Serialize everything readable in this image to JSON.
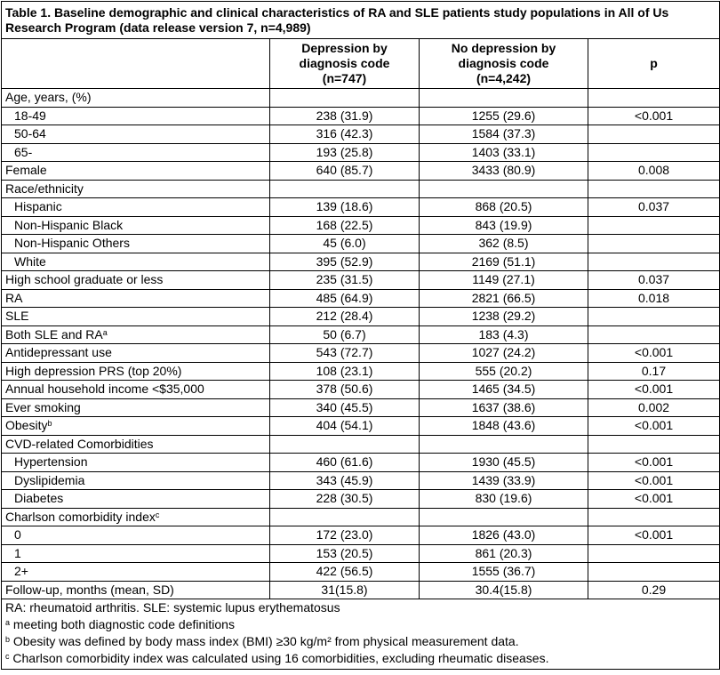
{
  "title": "Table 1. Baseline demographic and clinical characteristics of RA and SLE patients study populations in All of Us Research Program (data release version 7, n=4,989)",
  "header": [
    [],
    [
      "Depression by",
      "diagnosis code",
      "(n=747)"
    ],
    [
      "No depression by",
      "diagnosis code",
      "(n=4,242)"
    ],
    [
      "p"
    ]
  ],
  "rows": [
    {
      "label": "Age, years, (%)",
      "cells": [
        null,
        null,
        null
      ]
    },
    {
      "label": "18-49",
      "indent": true,
      "cells": [
        "238 (31.9)",
        "1255 (29.6)",
        "<0.001"
      ]
    },
    {
      "label": "50-64",
      "indent": true,
      "cells": [
        "316 (42.3)",
        "1584 (37.3)",
        null
      ]
    },
    {
      "label": "65-",
      "indent": true,
      "cells": [
        "193 (25.8)",
        "1403 (33.1)",
        null
      ]
    },
    {
      "label": "Female",
      "cells": [
        "640 (85.7)",
        "3433 (80.9)",
        "0.008"
      ]
    },
    {
      "label": "Race/ethnicity",
      "cells": [
        null,
        null,
        null
      ]
    },
    {
      "label": "Hispanic",
      "indent": true,
      "cells": [
        "139 (18.6)",
        "868 (20.5)",
        "0.037"
      ]
    },
    {
      "label": "Non-Hispanic Black",
      "indent": true,
      "cells": [
        "168 (22.5)",
        "843 (19.9)",
        null
      ]
    },
    {
      "label": "Non-Hispanic Others",
      "indent": true,
      "cells": [
        "45 (6.0)",
        "362 (8.5)",
        null
      ]
    },
    {
      "label": "White",
      "indent": true,
      "cells": [
        "395 (52.9)",
        "2169 (51.1)",
        null
      ]
    },
    {
      "label": "High school graduate or less",
      "cells": [
        "235 (31.5)",
        "1149 (27.1)",
        "0.037"
      ]
    },
    {
      "label": "RA",
      "cells": [
        "485 (64.9)",
        "2821 (66.5)",
        "0.018"
      ]
    },
    {
      "label": "SLE",
      "cells": [
        "212 (28.4)",
        "1238 (29.2)",
        null
      ]
    },
    {
      "label": "Both SLE and RA",
      "sup": "a",
      "cells": [
        "50 (6.7)",
        "183 (4.3)",
        null
      ]
    },
    {
      "label": "Antidepressant use",
      "cells": [
        "543 (72.7)",
        "1027 (24.2)",
        "<0.001"
      ]
    },
    {
      "label": "High depression PRS (top 20%)",
      "cells": [
        "108 (23.1)",
        "555 (20.2)",
        "0.17"
      ]
    },
    {
      "label": "Annual household income <$35,000",
      "cells": [
        "378 (50.6)",
        "1465 (34.5)",
        "<0.001"
      ]
    },
    {
      "label": "Ever smoking",
      "cells": [
        "340 (45.5)",
        "1637 (38.6)",
        "0.002"
      ]
    },
    {
      "label": "Obesity",
      "sup": "b",
      "cells": [
        "404 (54.1)",
        "1848 (43.6)",
        "<0.001"
      ]
    },
    {
      "label": "CVD-related Comorbidities",
      "cells": [
        null,
        null,
        null
      ]
    },
    {
      "label": "Hypertension",
      "indent": true,
      "cells": [
        "460 (61.6)",
        "1930 (45.5)",
        "<0.001"
      ]
    },
    {
      "label": "Dyslipidemia",
      "indent": true,
      "cells": [
        "343 (45.9)",
        "1439 (33.9)",
        "<0.001"
      ]
    },
    {
      "label": "Diabetes",
      "indent": true,
      "cells": [
        "228 (30.5)",
        "830 (19.6)",
        "<0.001"
      ]
    },
    {
      "label": "Charlson comorbidity index",
      "sup": "c",
      "cells": [
        null,
        null,
        null
      ]
    },
    {
      "label": "0",
      "indent": true,
      "cells": [
        "172 (23.0)",
        "1826 (43.0)",
        "<0.001"
      ]
    },
    {
      "label": "1",
      "indent": true,
      "cells": [
        "153 (20.5)",
        "861 (20.3)",
        null
      ]
    },
    {
      "label": "2+",
      "indent": true,
      "cells": [
        "422 (56.5)",
        "1555 (36.7)",
        null
      ]
    },
    {
      "label": "Follow-up, months (mean, SD)",
      "cells": [
        "31(15.8)",
        "30.4(15.8)",
        "0.29"
      ]
    }
  ],
  "footnotes": [
    {
      "text": "RA: rheumatoid arthritis. SLE:  systemic lupus erythematosus"
    },
    {
      "sup": "a",
      "text": "meeting both diagnostic code definitions"
    },
    {
      "sup": "b",
      "text": "Obesity was defined by body mass index (BMI) ≥30 kg/m² from physical measurement data."
    },
    {
      "sup": "c",
      "text": "Charlson comorbidity index was calculated using 16 comorbidities, excluding rheumatic diseases."
    }
  ]
}
